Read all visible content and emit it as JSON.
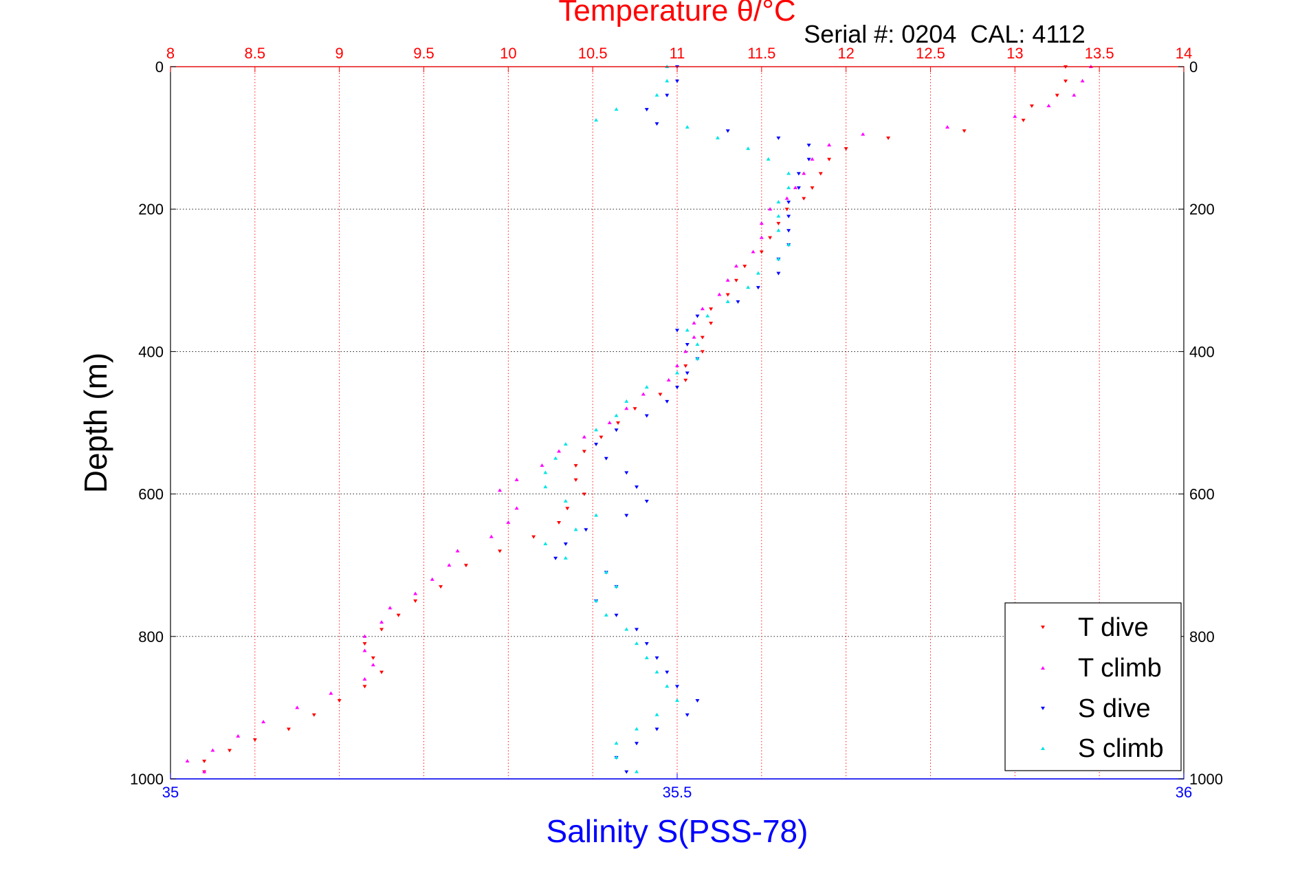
{
  "chart_data": {
    "type": "scatter",
    "title": "Temperature θ/°C",
    "subtitle": "Serial #: 0204  CAL: 4112",
    "ylabel": "Depth (m)",
    "xlabel_bottom": "Salinity S(PSS-78)",
    "xlabel_top": "Temperature θ/°C",
    "ylim": [
      0,
      1000
    ],
    "y_reversed": true,
    "y_ticks": [
      0,
      200,
      400,
      600,
      800,
      1000
    ],
    "x_top_range": [
      8,
      14
    ],
    "x_top_ticks": [
      "8",
      "8.5",
      "9",
      "9.5",
      "10",
      "10.5",
      "11",
      "11.5",
      "12",
      "12.5",
      "13",
      "13.5",
      "14"
    ],
    "x_bottom_range": [
      35,
      36
    ],
    "x_bottom_ticks": [
      "35",
      "35.5",
      "36"
    ],
    "grid": true,
    "legend_position": "bottom-right",
    "colors": {
      "temperature_axis": "#ff0000",
      "salinity_axis": "#0000ff",
      "grid": "#000000"
    },
    "series": [
      {
        "name": "T dive",
        "axis": "top",
        "marker": "triangle-down",
        "color": "#ff0000",
        "points": [
          [
            13.3,
            0
          ],
          [
            13.3,
            20
          ],
          [
            13.25,
            40
          ],
          [
            13.1,
            55
          ],
          [
            13.05,
            75
          ],
          [
            12.7,
            90
          ],
          [
            12.25,
            100
          ],
          [
            12.0,
            115
          ],
          [
            11.9,
            130
          ],
          [
            11.85,
            150
          ],
          [
            11.8,
            170
          ],
          [
            11.75,
            185
          ],
          [
            11.65,
            200
          ],
          [
            11.6,
            220
          ],
          [
            11.55,
            240
          ],
          [
            11.5,
            260
          ],
          [
            11.4,
            280
          ],
          [
            11.35,
            300
          ],
          [
            11.3,
            320
          ],
          [
            11.2,
            340
          ],
          [
            11.2,
            360
          ],
          [
            11.15,
            380
          ],
          [
            11.15,
            400
          ],
          [
            11.05,
            420
          ],
          [
            11.05,
            440
          ],
          [
            10.9,
            460
          ],
          [
            10.75,
            480
          ],
          [
            10.65,
            500
          ],
          [
            10.55,
            520
          ],
          [
            10.45,
            540
          ],
          [
            10.4,
            560
          ],
          [
            10.4,
            580
          ],
          [
            10.45,
            600
          ],
          [
            10.35,
            620
          ],
          [
            10.3,
            640
          ],
          [
            10.15,
            660
          ],
          [
            9.95,
            680
          ],
          [
            9.75,
            700
          ],
          [
            9.6,
            730
          ],
          [
            9.45,
            750
          ],
          [
            9.35,
            770
          ],
          [
            9.25,
            790
          ],
          [
            9.15,
            810
          ],
          [
            9.2,
            830
          ],
          [
            9.25,
            850
          ],
          [
            9.15,
            870
          ],
          [
            9.0,
            890
          ],
          [
            8.85,
            910
          ],
          [
            8.7,
            930
          ],
          [
            8.5,
            945
          ],
          [
            8.35,
            960
          ],
          [
            8.2,
            975
          ],
          [
            8.2,
            990
          ]
        ]
      },
      {
        "name": "T climb",
        "axis": "top",
        "marker": "triangle-up",
        "color": "#ff00ff",
        "points": [
          [
            13.45,
            0
          ],
          [
            13.4,
            20
          ],
          [
            13.35,
            40
          ],
          [
            13.2,
            55
          ],
          [
            13.0,
            70
          ],
          [
            12.6,
            85
          ],
          [
            12.1,
            95
          ],
          [
            11.9,
            110
          ],
          [
            11.8,
            130
          ],
          [
            11.75,
            150
          ],
          [
            11.7,
            170
          ],
          [
            11.65,
            185
          ],
          [
            11.55,
            200
          ],
          [
            11.5,
            220
          ],
          [
            11.5,
            240
          ],
          [
            11.45,
            260
          ],
          [
            11.35,
            280
          ],
          [
            11.3,
            300
          ],
          [
            11.25,
            320
          ],
          [
            11.15,
            340
          ],
          [
            11.1,
            360
          ],
          [
            11.1,
            380
          ],
          [
            11.05,
            400
          ],
          [
            11.0,
            420
          ],
          [
            10.95,
            440
          ],
          [
            10.8,
            460
          ],
          [
            10.7,
            480
          ],
          [
            10.6,
            500
          ],
          [
            10.45,
            520
          ],
          [
            10.3,
            540
          ],
          [
            10.2,
            560
          ],
          [
            10.05,
            580
          ],
          [
            9.95,
            595
          ],
          [
            10.05,
            620
          ],
          [
            10.0,
            640
          ],
          [
            9.9,
            660
          ],
          [
            9.7,
            680
          ],
          [
            9.65,
            700
          ],
          [
            9.55,
            720
          ],
          [
            9.45,
            740
          ],
          [
            9.3,
            760
          ],
          [
            9.25,
            780
          ],
          [
            9.15,
            800
          ],
          [
            9.15,
            820
          ],
          [
            9.2,
            840
          ],
          [
            9.15,
            860
          ],
          [
            8.95,
            880
          ],
          [
            8.75,
            900
          ],
          [
            8.55,
            920
          ],
          [
            8.4,
            940
          ],
          [
            8.25,
            960
          ],
          [
            8.1,
            975
          ],
          [
            8.2,
            990
          ]
        ]
      },
      {
        "name": "S dive",
        "axis": "bottom",
        "marker": "triangle-down",
        "color": "#0000ff",
        "points": [
          [
            35.5,
            0
          ],
          [
            35.5,
            20
          ],
          [
            35.49,
            40
          ],
          [
            35.47,
            60
          ],
          [
            35.48,
            80
          ],
          [
            35.55,
            90
          ],
          [
            35.6,
            100
          ],
          [
            35.63,
            110
          ],
          [
            35.63,
            130
          ],
          [
            35.62,
            150
          ],
          [
            35.62,
            170
          ],
          [
            35.61,
            190
          ],
          [
            35.61,
            210
          ],
          [
            35.61,
            230
          ],
          [
            35.61,
            250
          ],
          [
            35.6,
            270
          ],
          [
            35.6,
            290
          ],
          [
            35.58,
            310
          ],
          [
            35.56,
            330
          ],
          [
            35.52,
            350
          ],
          [
            35.5,
            370
          ],
          [
            35.51,
            390
          ],
          [
            35.52,
            410
          ],
          [
            35.51,
            430
          ],
          [
            35.5,
            450
          ],
          [
            35.49,
            470
          ],
          [
            35.47,
            490
          ],
          [
            35.44,
            510
          ],
          [
            35.42,
            530
          ],
          [
            35.43,
            550
          ],
          [
            35.45,
            570
          ],
          [
            35.46,
            590
          ],
          [
            35.47,
            610
          ],
          [
            35.45,
            630
          ],
          [
            35.41,
            650
          ],
          [
            35.39,
            670
          ],
          [
            35.38,
            690
          ],
          [
            35.43,
            710
          ],
          [
            35.44,
            730
          ],
          [
            35.42,
            750
          ],
          [
            35.44,
            770
          ],
          [
            35.46,
            790
          ],
          [
            35.47,
            810
          ],
          [
            35.48,
            830
          ],
          [
            35.49,
            850
          ],
          [
            35.5,
            870
          ],
          [
            35.52,
            890
          ],
          [
            35.51,
            910
          ],
          [
            35.48,
            930
          ],
          [
            35.46,
            950
          ],
          [
            35.44,
            970
          ],
          [
            35.45,
            990
          ]
        ]
      },
      {
        "name": "S climb",
        "axis": "bottom",
        "marker": "triangle-up",
        "color": "#00e5e5",
        "points": [
          [
            35.49,
            0
          ],
          [
            35.49,
            20
          ],
          [
            35.48,
            40
          ],
          [
            35.44,
            60
          ],
          [
            35.42,
            75
          ],
          [
            35.51,
            85
          ],
          [
            35.54,
            100
          ],
          [
            35.57,
            115
          ],
          [
            35.59,
            130
          ],
          [
            35.61,
            150
          ],
          [
            35.61,
            170
          ],
          [
            35.6,
            190
          ],
          [
            35.6,
            210
          ],
          [
            35.6,
            230
          ],
          [
            35.61,
            250
          ],
          [
            35.6,
            270
          ],
          [
            35.58,
            290
          ],
          [
            35.57,
            310
          ],
          [
            35.55,
            330
          ],
          [
            35.53,
            350
          ],
          [
            35.51,
            370
          ],
          [
            35.52,
            390
          ],
          [
            35.52,
            410
          ],
          [
            35.5,
            430
          ],
          [
            35.47,
            450
          ],
          [
            35.45,
            470
          ],
          [
            35.44,
            490
          ],
          [
            35.42,
            510
          ],
          [
            35.39,
            530
          ],
          [
            35.38,
            550
          ],
          [
            35.37,
            570
          ],
          [
            35.37,
            590
          ],
          [
            35.39,
            610
          ],
          [
            35.42,
            630
          ],
          [
            35.4,
            650
          ],
          [
            35.37,
            670
          ],
          [
            35.39,
            690
          ],
          [
            35.43,
            710
          ],
          [
            35.44,
            730
          ],
          [
            35.42,
            750
          ],
          [
            35.43,
            770
          ],
          [
            35.45,
            790
          ],
          [
            35.46,
            810
          ],
          [
            35.47,
            830
          ],
          [
            35.48,
            850
          ],
          [
            35.49,
            870
          ],
          [
            35.5,
            890
          ],
          [
            35.48,
            910
          ],
          [
            35.46,
            930
          ],
          [
            35.44,
            950
          ],
          [
            35.44,
            970
          ],
          [
            35.46,
            990
          ]
        ]
      }
    ]
  }
}
